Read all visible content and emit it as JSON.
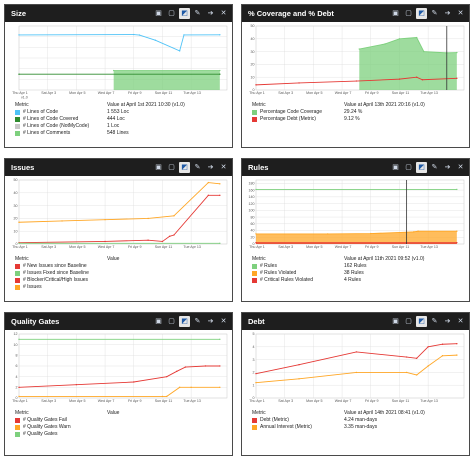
{
  "colors": {
    "bg": "#ffffff",
    "titlebar": "#1e1e1e",
    "cyan": "#4fc3f7",
    "green": "#2e8b2e",
    "red": "#e53935",
    "orange": "#ffa726",
    "gold": "#ffc107",
    "lightgreen": "#7ed07e",
    "grid": "#dddddd",
    "text": "#1a1a1a"
  },
  "tool_icons": [
    "restore-icon",
    "expand-icon",
    "chart-mode-icon",
    "edit-icon",
    "navigate-icon",
    "close-icon"
  ],
  "panels": [
    {
      "title": "Size",
      "legend_metric_label": "Metric",
      "legend_value_label": "Value at April 1st 2021  10:30  (v1.0)",
      "legend_items": [
        {
          "label": "# Lines of Code",
          "value": "1 553 Loc",
          "color": "#4fc3f7"
        },
        {
          "label": "# Lines of Code Covered",
          "value": "444 Loc",
          "color": "#2e8b2e"
        },
        {
          "label": "# Lines of Code (NotMyCode)",
          "value": "1 Loc",
          "color": "#c8c8c8"
        },
        {
          "label": "# Lines of Comments",
          "value": "548 Lines",
          "color": "#7ed07e"
        }
      ]
    },
    {
      "title": "% Coverage and % Debt",
      "legend_metric_label": "Metric",
      "legend_value_label": "Value at April 13th 2021  20:16  (v1.0)",
      "legend_items": [
        {
          "label": "Percentage Code Coverage",
          "value": "29.24 %",
          "color": "#7ed07e"
        },
        {
          "label": "Percentage Debt (Metric)",
          "value": "9.12 %",
          "color": "#e53935"
        }
      ]
    },
    {
      "title": "Issues",
      "legend_metric_label": "Metric",
      "legend_value_label": "Value",
      "legend_items": [
        {
          "label": "# New Issues since Baseline",
          "value": "",
          "color": "#e53935"
        },
        {
          "label": "# Issues Fixed since Baseline",
          "value": "",
          "color": "#7ed07e"
        },
        {
          "label": "# Blocker/Critical/High Issues",
          "value": "",
          "color": "#e53935"
        },
        {
          "label": "# Issues",
          "value": "",
          "color": "#ffa726"
        }
      ]
    },
    {
      "title": "Rules",
      "legend_metric_label": "Metric",
      "legend_value_label": "Value at April 11th 2021  09:52  (v1.0)",
      "legend_items": [
        {
          "label": "# Rules",
          "value": "162 Rules",
          "color": "#7ed07e"
        },
        {
          "label": "# Rules Violated",
          "value": "38 Rules",
          "color": "#ffa726"
        },
        {
          "label": "# Critical Rules Violated",
          "value": "4 Rules",
          "color": "#e53935"
        }
      ]
    },
    {
      "title": "Quality Gates",
      "legend_metric_label": "Metric",
      "legend_value_label": "Value",
      "legend_items": [
        {
          "label": "# Quality Gates Fail",
          "value": "",
          "color": "#e53935"
        },
        {
          "label": "# Quality Gates Warn",
          "value": "",
          "color": "#ffa726"
        },
        {
          "label": "# Quality Gates",
          "value": "",
          "color": "#7ed07e"
        }
      ]
    },
    {
      "title": "Debt",
      "legend_metric_label": "Metric",
      "legend_value_label": "Value at April 14th 2021  08:41  (v1.0)",
      "legend_items": [
        {
          "label": "Debt (Metric)",
          "value": "4.24 man-days",
          "color": "#e53935"
        },
        {
          "label": "Annual Interest (Metric)",
          "value": "3.35 man-days",
          "color": "#ffa726"
        }
      ]
    }
  ],
  "chart_data": [
    {
      "type": "line",
      "x": [
        "Thu Apr 1",
        "Sat Apr 3",
        "Mon Apr 5",
        "Wed Apr 7",
        "Fri Apr 9",
        "Sun Apr 11",
        "Tue Apr 13"
      ],
      "version_label": "v1.0",
      "yticks": [],
      "ylim": [
        0,
        1800
      ],
      "series": [
        {
          "name": "# Lines of Code",
          "color": "#4fc3f7",
          "points": [
            [
              0,
              1550
            ],
            [
              8,
              1560
            ],
            [
              8.4,
              1545
            ],
            [
              9.5,
              1400
            ],
            [
              11.2,
              1100
            ],
            [
              11.5,
              1550
            ],
            [
              14,
              1553
            ]
          ]
        },
        {
          "name": "# Lines of Code Covered",
          "color": "#2e8b2e",
          "points": [
            [
              0,
              444
            ],
            [
              14,
              444
            ]
          ]
        },
        {
          "name": "# Lines of Comments",
          "color": "#7ed07e",
          "area": true,
          "points": [
            [
              6.6,
              548
            ],
            [
              14,
              548
            ]
          ]
        }
      ],
      "xmax": 14.5
    },
    {
      "type": "area",
      "x": [
        "Thu Apr 1",
        "Sat Apr 3",
        "Mon Apr 5",
        "Wed Apr 7",
        "Fri Apr 9",
        "Sun Apr 11",
        "Tue Apr 13"
      ],
      "yticks": [
        "0",
        "10",
        "20",
        "30",
        "40",
        "50"
      ],
      "ylim": [
        0,
        50
      ],
      "marker_x": 13.3,
      "series": [
        {
          "name": "Percentage Code Coverage",
          "color": "#7ed07e",
          "area": true,
          "points": [
            [
              7.2,
              32
            ],
            [
              9,
              36
            ],
            [
              10,
              40
            ],
            [
              11.2,
              41
            ],
            [
              11.7,
              30
            ],
            [
              13.3,
              29
            ],
            [
              14,
              29.24
            ]
          ]
        },
        {
          "name": "Percentage Debt (Metric)",
          "color": "#e53935",
          "points": [
            [
              0,
              4
            ],
            [
              3,
              5.5
            ],
            [
              7,
              7
            ],
            [
              10,
              8.5
            ],
            [
              11.2,
              10
            ],
            [
              11.6,
              8
            ],
            [
              14,
              9.12
            ]
          ]
        }
      ],
      "xmax": 14.5
    },
    {
      "type": "line",
      "x": [
        "Thu Apr 1",
        "Sat Apr 3",
        "Mon Apr 5",
        "Wed Apr 7",
        "Fri Apr 9",
        "Sun Apr 11",
        "Tue Apr 13"
      ],
      "yticks": [
        "0",
        "10",
        "20",
        "30",
        "40",
        "50"
      ],
      "ylim": [
        0,
        50
      ],
      "series": [
        {
          "name": "# Issues",
          "color": "#ffa726",
          "points": [
            [
              0,
              17
            ],
            [
              3,
              18
            ],
            [
              6,
              19
            ],
            [
              9,
              20
            ],
            [
              10.8,
              22
            ],
            [
              13.2,
              48
            ],
            [
              14,
              47
            ]
          ]
        },
        {
          "name": "# Blocker/Critical/High Issues",
          "color": "#e53935",
          "points": [
            [
              0,
              1
            ],
            [
              6,
              2
            ],
            [
              9,
              3
            ],
            [
              10,
              2
            ],
            [
              10.5,
              6
            ],
            [
              10.8,
              7
            ],
            [
              13.2,
              38
            ],
            [
              14,
              38
            ]
          ]
        },
        {
          "name": "# Issues Fixed since Baseline",
          "color": "#7ed07e",
          "points": [
            [
              0,
              0.5
            ],
            [
              14,
              0.5
            ]
          ]
        }
      ],
      "xmax": 14.5
    },
    {
      "type": "area",
      "x": [
        "Thu Apr 1",
        "Sat Apr 3",
        "Mon Apr 5",
        "Wed Apr 7",
        "Fri Apr 9",
        "Sun Apr 11",
        "Tue Apr 13"
      ],
      "yticks": [
        "0",
        "20",
        "40",
        "60",
        "80",
        "100",
        "120",
        "140",
        "160",
        "180"
      ],
      "ylim": [
        0,
        190
      ],
      "marker_x": 10.5,
      "series": [
        {
          "name": "# Rules",
          "color": "#7ed07e",
          "points": [
            [
              0,
              162
            ],
            [
              14,
              162
            ]
          ]
        },
        {
          "name": "# Rules Violated",
          "color": "#ffa726",
          "area": true,
          "points": [
            [
              0,
              30
            ],
            [
              5,
              30
            ],
            [
              8,
              31
            ],
            [
              10.5,
              35
            ],
            [
              11,
              36
            ],
            [
              11.3,
              38
            ],
            [
              14,
              38
            ]
          ]
        },
        {
          "name": "# Critical Rules Violated",
          "color": "#e53935",
          "area": true,
          "points": [
            [
              0,
              4
            ],
            [
              14,
              4
            ]
          ]
        }
      ],
      "xmax": 14.5
    },
    {
      "type": "line",
      "x": [
        "Thu Apr 1",
        "Sat Apr 3",
        "Mon Apr 5",
        "Wed Apr 7",
        "Fri Apr 9",
        "Sun Apr 11",
        "Tue Apr 13"
      ],
      "yticks": [
        "0",
        "2",
        "4",
        "6",
        "8",
        "10",
        "12"
      ],
      "ylim": [
        0,
        12
      ],
      "series": [
        {
          "name": "# Quality Gates",
          "color": "#7ed07e",
          "points": [
            [
              0,
              11
            ],
            [
              14,
              11
            ]
          ]
        },
        {
          "name": "# Quality Gates Fail",
          "color": "#e53935",
          "points": [
            [
              0,
              2
            ],
            [
              4,
              2.5
            ],
            [
              8,
              3
            ],
            [
              10.3,
              4
            ],
            [
              11,
              5
            ],
            [
              11.6,
              5.8
            ],
            [
              13,
              6
            ],
            [
              14,
              6
            ]
          ]
        },
        {
          "name": "# Quality Gates Warn",
          "color": "#ffa726",
          "points": [
            [
              0,
              0.3
            ],
            [
              10,
              0.3
            ],
            [
              10.3,
              0.3
            ],
            [
              11.2,
              2
            ],
            [
              12,
              2
            ],
            [
              14,
              2
            ]
          ]
        }
      ],
      "xmax": 14.5
    },
    {
      "type": "line",
      "x": [
        "Thu Apr 1",
        "Sat Apr 3",
        "Mon Apr 5",
        "Wed Apr 7",
        "Fri Apr 9",
        "Sun Apr 11",
        "Tue Apr 13"
      ],
      "yticks": [
        "0",
        "1",
        "2",
        "3",
        "4",
        "5"
      ],
      "ylim": [
        0,
        5
      ],
      "series": [
        {
          "name": "Debt (Metric)",
          "color": "#e53935",
          "points": [
            [
              0,
              1.9
            ],
            [
              3,
              2.6
            ],
            [
              7,
              3.6
            ],
            [
              10.5,
              3.2
            ],
            [
              11.2,
              3.1
            ],
            [
              12,
              4.0
            ],
            [
              13,
              4.2
            ],
            [
              14,
              4.24
            ]
          ]
        },
        {
          "name": "Annual Interest (Metric)",
          "color": "#ffa726",
          "points": [
            [
              0,
              1.2
            ],
            [
              3,
              1.5
            ],
            [
              7,
              2.0
            ],
            [
              10.5,
              2.0
            ],
            [
              11.2,
              1.8
            ],
            [
              12,
              2.5
            ],
            [
              13,
              3.3
            ],
            [
              14,
              3.35
            ]
          ]
        }
      ],
      "xmax": 14.5
    }
  ]
}
